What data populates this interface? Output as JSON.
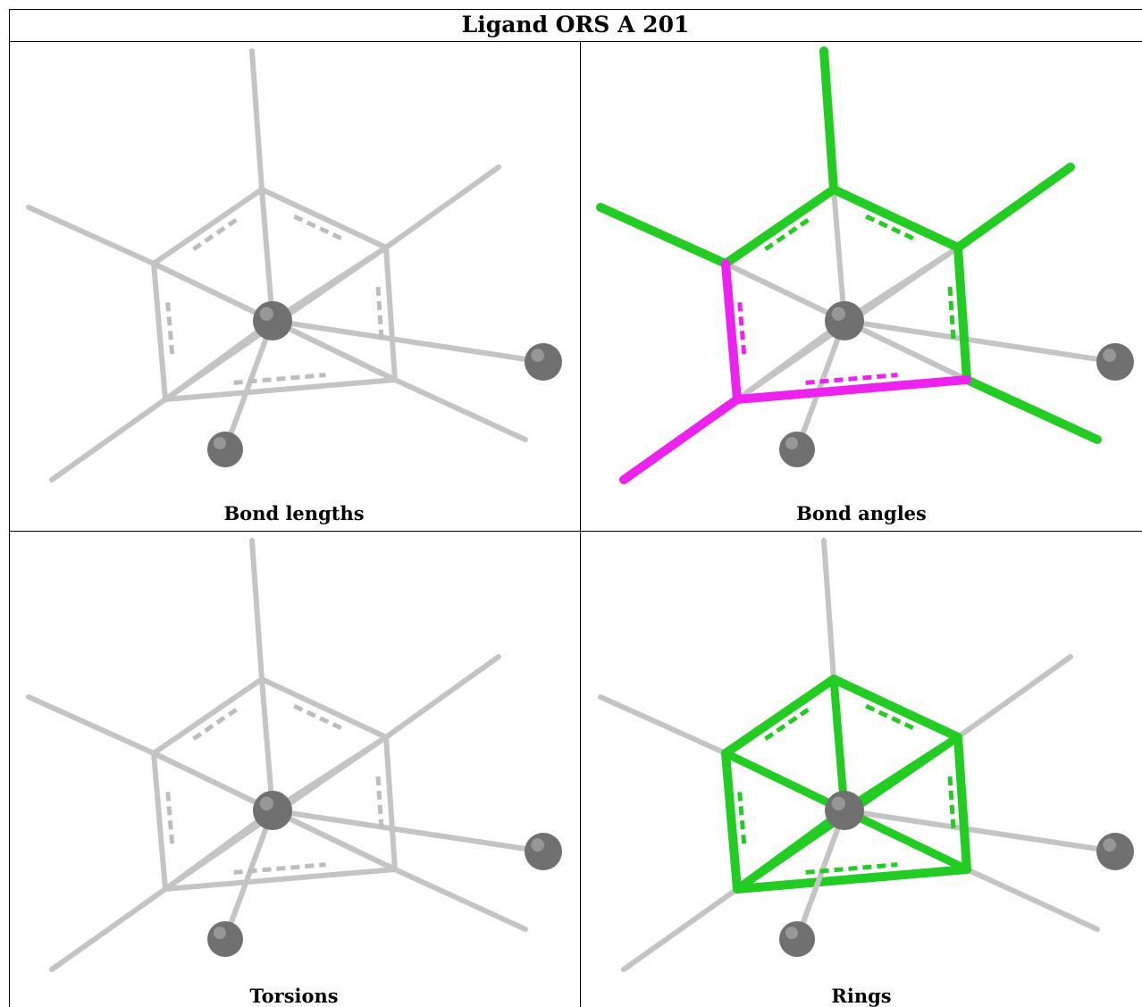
{
  "title": "Ligand ORS A 201",
  "panels": [
    {
      "id": "bond-lengths",
      "caption": "Bond lengths",
      "highlight": "none"
    },
    {
      "id": "bond-angles",
      "caption": "Bond angles",
      "highlight": "angles"
    },
    {
      "id": "torsions",
      "caption": "Torsions",
      "highlight": "none"
    },
    {
      "id": "rings",
      "caption": "Rings",
      "highlight": "rings"
    }
  ],
  "colors": {
    "bond_default": "#c4c4c4",
    "bond_ok": "#22cc22",
    "bond_outlier": "#ee22ee",
    "atom": "#707070",
    "border": "#000000"
  }
}
